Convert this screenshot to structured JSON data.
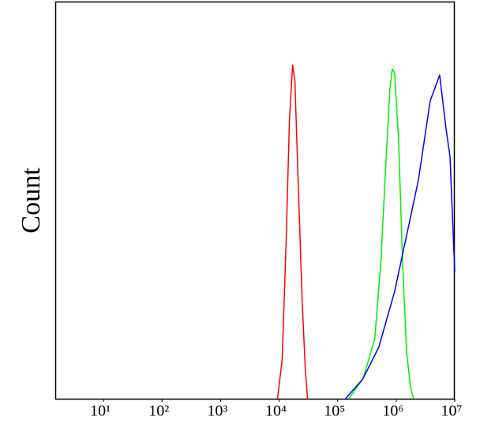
{
  "chart_data": {
    "type": "line",
    "y_label": "Count",
    "x_log": true,
    "xlim": [
      1.5,
      10000000
    ],
    "ylim": [
      0,
      100
    ],
    "xticks": [
      {
        "value": 10,
        "label": "10¹"
      },
      {
        "value": 100,
        "label": "10²"
      },
      {
        "value": 1000,
        "label": "10³"
      },
      {
        "value": 10000,
        "label": "10⁴"
      },
      {
        "value": 100000,
        "label": "10⁵"
      },
      {
        "value": 1000000,
        "label": "10⁶"
      },
      {
        "value": 10000000,
        "label": "10⁷"
      }
    ],
    "series": [
      {
        "color": "#ff0000",
        "x": [
          9400,
          11300,
          13200,
          15000,
          17000,
          18600,
          21100,
          24700,
          27900,
          30600
        ],
        "values": [
          0,
          10,
          40,
          70,
          84,
          80,
          55,
          25,
          8,
          0
        ]
      },
      {
        "color": "#00ee00",
        "x": [
          155000,
          270000,
          430000,
          550000,
          670000,
          780000,
          855000,
          940000,
          1100000,
          1280000,
          1500000,
          1750000,
          1980000
        ],
        "values": [
          0,
          5,
          15,
          35,
          60,
          78,
          83,
          82,
          65,
          35,
          12,
          3,
          0
        ]
      },
      {
        "color": "#0000ff",
        "x": [
          136000,
          270000,
          505000,
          940000,
          1500000,
          2390000,
          3810000,
          5530000,
          7100000,
          8300000,
          10000000
        ],
        "values": [
          0,
          5,
          13,
          27,
          41,
          55,
          75,
          81.5,
          68,
          61,
          32
        ]
      }
    ]
  }
}
